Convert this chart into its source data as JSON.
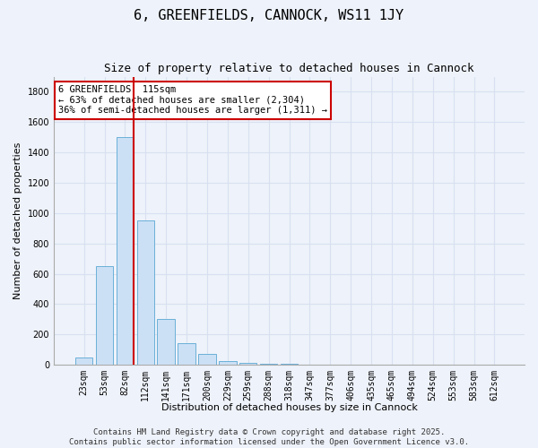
{
  "title": "6, GREENFIELDS, CANNOCK, WS11 1JY",
  "subtitle": "Size of property relative to detached houses in Cannock",
  "xlabel": "Distribution of detached houses by size in Cannock",
  "ylabel": "Number of detached properties",
  "bar_color": "#cce0f5",
  "bar_edge_color": "#6ab0d8",
  "background_color": "#eef2fa",
  "grid_color": "#d8e0f0",
  "categories": [
    "23sqm",
    "53sqm",
    "82sqm",
    "112sqm",
    "141sqm",
    "171sqm",
    "200sqm",
    "229sqm",
    "259sqm",
    "288sqm",
    "318sqm",
    "347sqm",
    "377sqm",
    "406sqm",
    "435sqm",
    "465sqm",
    "494sqm",
    "524sqm",
    "553sqm",
    "583sqm",
    "612sqm"
  ],
  "values": [
    50,
    650,
    1500,
    950,
    300,
    140,
    70,
    25,
    15,
    5,
    5,
    2,
    2,
    2,
    0,
    0,
    0,
    2,
    0,
    0,
    0
  ],
  "ylim": [
    0,
    1900
  ],
  "yticks": [
    0,
    200,
    400,
    600,
    800,
    1000,
    1200,
    1400,
    1600,
    1800
  ],
  "annotation_text": "6 GREENFIELDS: 115sqm\n← 63% of detached houses are smaller (2,304)\n36% of semi-detached houses are larger (1,311) →",
  "annotation_box_color": "#ffffff",
  "annotation_box_edge": "#cc0000",
  "property_bin_index": 2,
  "marker_line_color": "#cc0000",
  "footer_text": "Contains HM Land Registry data © Crown copyright and database right 2025.\nContains public sector information licensed under the Open Government Licence v3.0.",
  "title_fontsize": 11,
  "subtitle_fontsize": 9,
  "label_fontsize": 8,
  "tick_fontsize": 7,
  "annotation_fontsize": 7.5,
  "footer_fontsize": 6.5
}
